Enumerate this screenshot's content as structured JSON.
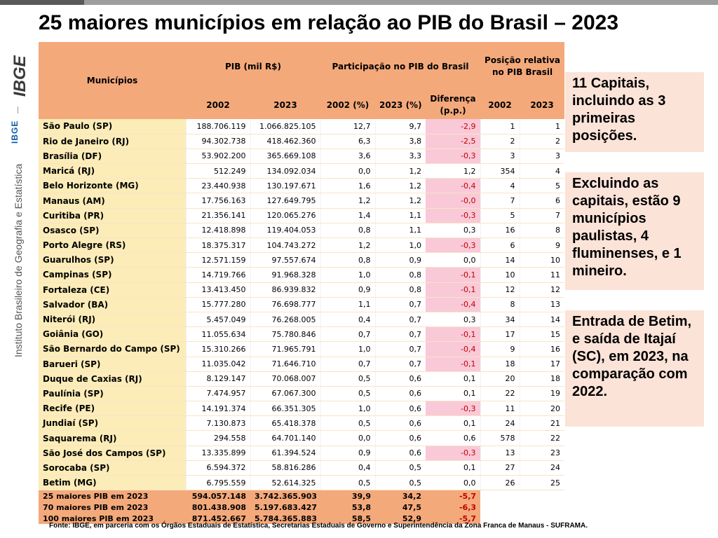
{
  "header": {
    "title": "25 maiores municípios em relação ao PIB do Brasil – 2023"
  },
  "sidebar": {
    "logo_text": "IBGE",
    "ibge_label": "IBGE",
    "institute": "Instituto Brasileiro de Geografia e Estatística"
  },
  "table": {
    "col_municipios": "Municípios",
    "col_pib": "PIB (mil R$)",
    "col_part": "Participação no PIB do Brasil",
    "col_pos": "Posição relativa no PIB Brasil",
    "sub_2002": "2002",
    "sub_2023": "2023",
    "sub_2002p": "2002 (%)",
    "sub_2023p": "2023 (%)",
    "sub_diff": "Diferença (p.p.)",
    "rows": [
      {
        "name": "São Paulo (SP)",
        "pib2002": "188.706.119",
        "pib2023": "1.066.825.105",
        "p2002": "12,7",
        "p2023": "9,7",
        "diff": "-2,9",
        "pos2002": "1",
        "pos2023": "1"
      },
      {
        "name": "Rio de Janeiro (RJ)",
        "pib2002": "94.302.738",
        "pib2023": "418.462.360",
        "p2002": "6,3",
        "p2023": "3,8",
        "diff": "-2,5",
        "pos2002": "2",
        "pos2023": "2"
      },
      {
        "name": "Brasília (DF)",
        "pib2002": "53.902.200",
        "pib2023": "365.669.108",
        "p2002": "3,6",
        "p2023": "3,3",
        "diff": "-0,3",
        "pos2002": "3",
        "pos2023": "3"
      },
      {
        "name": "Maricá (RJ)",
        "pib2002": "512.249",
        "pib2023": "134.092.034",
        "p2002": "0,0",
        "p2023": "1,2",
        "diff": "1,2",
        "pos2002": "354",
        "pos2023": "4"
      },
      {
        "name": "Belo Horizonte (MG)",
        "pib2002": "23.440.938",
        "pib2023": "130.197.671",
        "p2002": "1,6",
        "p2023": "1,2",
        "diff": "-0,4",
        "pos2002": "4",
        "pos2023": "5"
      },
      {
        "name": "Manaus (AM)",
        "pib2002": "17.756.163",
        "pib2023": "127.649.795",
        "p2002": "1,2",
        "p2023": "1,2",
        "diff": "-0,0",
        "pos2002": "7",
        "pos2023": "6"
      },
      {
        "name": "Curitiba (PR)",
        "pib2002": "21.356.141",
        "pib2023": "120.065.276",
        "p2002": "1,4",
        "p2023": "1,1",
        "diff": "-0,3",
        "pos2002": "5",
        "pos2023": "7"
      },
      {
        "name": "Osasco (SP)",
        "pib2002": "12.418.898",
        "pib2023": "119.404.053",
        "p2002": "0,8",
        "p2023": "1,1",
        "diff": "0,3",
        "pos2002": "16",
        "pos2023": "8"
      },
      {
        "name": "Porto Alegre (RS)",
        "pib2002": "18.375.317",
        "pib2023": "104.743.272",
        "p2002": "1,2",
        "p2023": "1,0",
        "diff": "-0,3",
        "pos2002": "6",
        "pos2023": "9"
      },
      {
        "name": "Guarulhos (SP)",
        "pib2002": "12.571.159",
        "pib2023": "97.557.674",
        "p2002": "0,8",
        "p2023": "0,9",
        "diff": "0,0",
        "pos2002": "14",
        "pos2023": "10"
      },
      {
        "name": "Campinas (SP)",
        "pib2002": "14.719.766",
        "pib2023": "91.968.328",
        "p2002": "1,0",
        "p2023": "0,8",
        "diff": "-0,1",
        "pos2002": "10",
        "pos2023": "11"
      },
      {
        "name": "Fortaleza (CE)",
        "pib2002": "13.413.450",
        "pib2023": "86.939.832",
        "p2002": "0,9",
        "p2023": "0,8",
        "diff": "-0,1",
        "pos2002": "12",
        "pos2023": "12"
      },
      {
        "name": "Salvador (BA)",
        "pib2002": "15.777.280",
        "pib2023": "76.698.777",
        "p2002": "1,1",
        "p2023": "0,7",
        "diff": "-0,4",
        "pos2002": "8",
        "pos2023": "13"
      },
      {
        "name": "Niterói (RJ)",
        "pib2002": "5.457.049",
        "pib2023": "76.268.005",
        "p2002": "0,4",
        "p2023": "0,7",
        "diff": "0,3",
        "pos2002": "34",
        "pos2023": "14"
      },
      {
        "name": "Goiânia (GO)",
        "pib2002": "11.055.634",
        "pib2023": "75.780.846",
        "p2002": "0,7",
        "p2023": "0,7",
        "diff": "-0,1",
        "pos2002": "17",
        "pos2023": "15"
      },
      {
        "name": "São Bernardo do Campo (SP)",
        "pib2002": "15.310.266",
        "pib2023": "71.965.791",
        "p2002": "1,0",
        "p2023": "0,7",
        "diff": "-0,4",
        "pos2002": "9",
        "pos2023": "16"
      },
      {
        "name": "Barueri (SP)",
        "pib2002": "11.035.042",
        "pib2023": "71.646.710",
        "p2002": "0,7",
        "p2023": "0,7",
        "diff": "-0,1",
        "pos2002": "18",
        "pos2023": "17"
      },
      {
        "name": "Duque de Caxias (RJ)",
        "pib2002": "8.129.147",
        "pib2023": "70.068.007",
        "p2002": "0,5",
        "p2023": "0,6",
        "diff": "0,1",
        "pos2002": "20",
        "pos2023": "18"
      },
      {
        "name": "Paulínia (SP)",
        "pib2002": "7.474.957",
        "pib2023": "67.067.300",
        "p2002": "0,5",
        "p2023": "0,6",
        "diff": "0,1",
        "pos2002": "22",
        "pos2023": "19"
      },
      {
        "name": "Recife (PE)",
        "pib2002": "14.191.374",
        "pib2023": "66.351.305",
        "p2002": "1,0",
        "p2023": "0,6",
        "diff": "-0,3",
        "pos2002": "11",
        "pos2023": "20"
      },
      {
        "name": "Jundiaí (SP)",
        "pib2002": "7.130.873",
        "pib2023": "65.418.378",
        "p2002": "0,5",
        "p2023": "0,6",
        "diff": "0,1",
        "pos2002": "24",
        "pos2023": "21"
      },
      {
        "name": "Saquarema (RJ)",
        "pib2002": "294.558",
        "pib2023": "64.701.140",
        "p2002": "0,0",
        "p2023": "0,6",
        "diff": "0,6",
        "pos2002": "578",
        "pos2023": "22"
      },
      {
        "name": "São José dos Campos (SP)",
        "pib2002": "13.335.899",
        "pib2023": "61.394.524",
        "p2002": "0,9",
        "p2023": "0,6",
        "diff": "-0,3",
        "pos2002": "13",
        "pos2023": "23"
      },
      {
        "name": "Sorocaba (SP)",
        "pib2002": "6.594.372",
        "pib2023": "58.816.286",
        "p2002": "0,4",
        "p2023": "0,5",
        "diff": "0,1",
        "pos2002": "27",
        "pos2023": "24"
      },
      {
        "name": "Betim (MG)",
        "pib2002": "6.795.559",
        "pib2023": "52.614.325",
        "p2002": "0,5",
        "p2023": "0,5",
        "diff": "0,0",
        "pos2002": "26",
        "pos2023": "25"
      }
    ],
    "totals": [
      {
        "name": "25 maiores PIB em 2023",
        "pib2002": "594.057.148",
        "pib2023": "3.742.365.903",
        "p2002": "39,9",
        "p2023": "34,2",
        "diff": "-5,7"
      },
      {
        "name": "70 maiores PIB em 2023",
        "pib2002": "801.438.908",
        "pib2023": "5.197.683.427",
        "p2002": "53,8",
        "p2023": "47,5",
        "diff": "-6,3"
      },
      {
        "name": "100 maiores PIB em 2023",
        "pib2002": "871.452.667",
        "pib2023": "5.784.365.883",
        "p2002": "58,5",
        "p2023": "52,9",
        "diff": "-5,7"
      }
    ]
  },
  "notes": {
    "note1": "11 Capitais, incluindo as 3 primeiras posições.",
    "note2": "Excluindo as capitais, estão 9 municípios paulistas, 4 fluminenses, e 1 mineiro.",
    "note3": "Entrada de Betim, e saída de Itajaí (SC), em 2023, na comparação com 2022."
  },
  "footer": {
    "source": "Fonte: IBGE, em parceria com os Órgãos Estaduais de Estatística, Secretarias Estaduais de Governo e Superintendência da Zona Franca de Manaus - SUFRAMA."
  },
  "colors": {
    "header_bg": "#f4a97b",
    "name_bg": "#fcecb8",
    "neg_bg": "#f9c9d8",
    "neg_text": "#c00000",
    "note_bg": "#fbe3d8",
    "ibge_blue": "#0b5aa8"
  }
}
